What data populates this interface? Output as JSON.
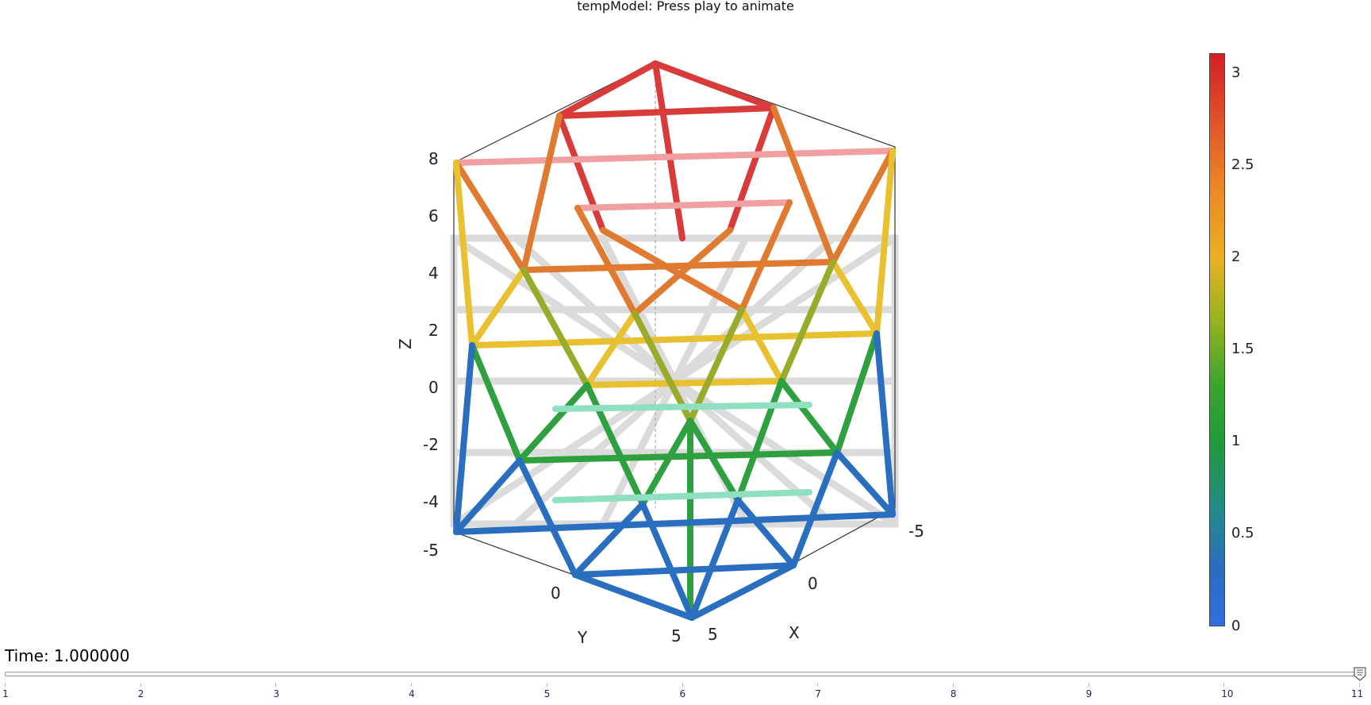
{
  "window": {
    "title": "tempModel: Press play to animate"
  },
  "axes": {
    "z_label": "Z",
    "y_label": "Y",
    "x_label": "X",
    "z_ticks": [
      "8",
      "6",
      "4",
      "2",
      "0",
      "-2",
      "-4"
    ],
    "y_ticks": [
      "-5",
      "0",
      "5"
    ],
    "x_ticks": [
      "5",
      "0",
      "-5"
    ]
  },
  "colorbar": {
    "ticks": [
      "3",
      "2.5",
      "2",
      "1.5",
      "1",
      "0.5",
      "0"
    ],
    "colors": {
      "high": "#d41f26",
      "mid": "#e8b020",
      "low_mid": "#1f9a3a",
      "low": "#2f6fe0"
    }
  },
  "animation": {
    "time_label": "Time: 1.000000",
    "slider_ticks": [
      "1",
      "2",
      "3",
      "4",
      "5",
      "6",
      "7",
      "8",
      "9",
      "10",
      "11"
    ],
    "current_frame": 11,
    "frame_count": 11
  }
}
